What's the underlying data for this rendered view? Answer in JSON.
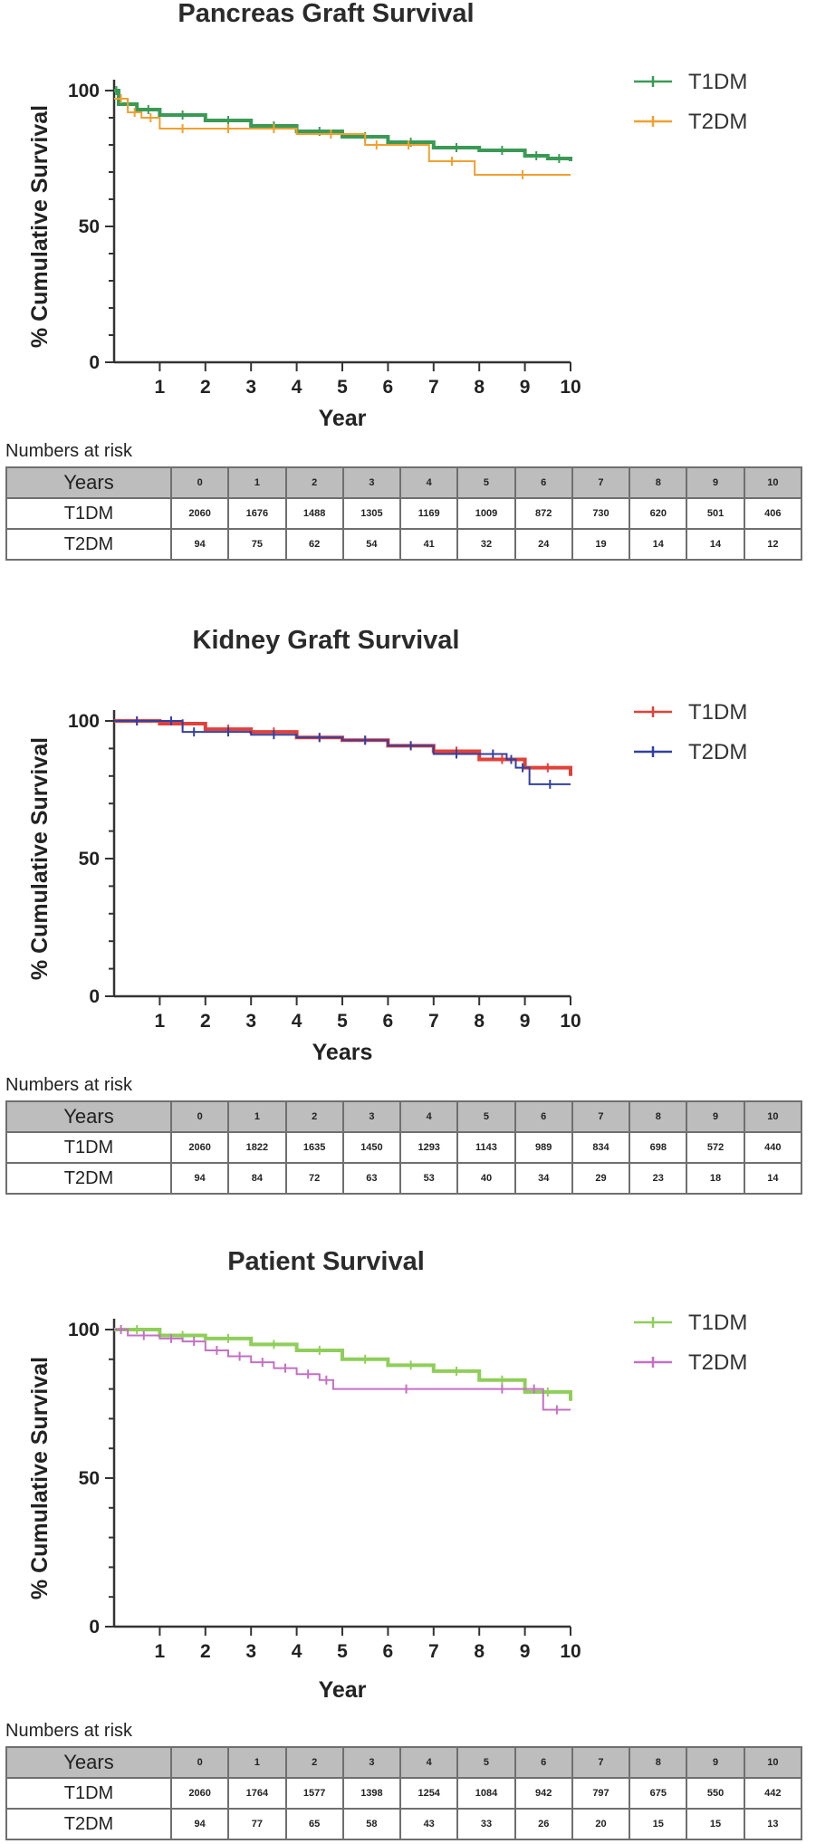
{
  "numbers_at_risk_label": "Numbers at risk",
  "chart_data": [
    {
      "type": "line",
      "title": "Pancreas Graft Survival",
      "xlabel": "Year",
      "ylabel": "% Cumulative Survival",
      "xlim": [
        0,
        10
      ],
      "ylim": [
        0,
        100
      ],
      "xticks": [
        1,
        2,
        3,
        4,
        5,
        6,
        7,
        8,
        9,
        10
      ],
      "yticks": [
        0,
        50,
        100
      ],
      "legend_position": "top-right",
      "series": [
        {
          "name": "T1DM",
          "color": "#3a9a55",
          "x": [
            0,
            0.1,
            0.5,
            1,
            2,
            3,
            4,
            5,
            6,
            7,
            8,
            9,
            9.5,
            10
          ],
          "y": [
            100,
            95,
            93,
            91,
            89,
            87,
            85,
            83,
            81,
            79,
            78,
            76,
            75,
            74
          ]
        },
        {
          "name": "T2DM",
          "color": "#f0a030",
          "x": [
            0,
            0.3,
            0.6,
            1,
            2,
            3,
            4,
            5.5,
            6,
            6.9,
            7.9,
            10
          ],
          "y": [
            97,
            92,
            90,
            86,
            86,
            86,
            84,
            80,
            80,
            74,
            69,
            69
          ]
        }
      ],
      "risk_table": {
        "header": "Years",
        "columns": [
          "0",
          "1",
          "2",
          "3",
          "4",
          "5",
          "6",
          "7",
          "8",
          "9",
          "10"
        ],
        "rows": [
          {
            "label": "T1DM",
            "values": [
              "2060",
              "1676",
              "1488",
              "1305",
              "1169",
              "1009",
              "872",
              "730",
              "620",
              "501",
              "406"
            ]
          },
          {
            "label": "T2DM",
            "values": [
              "94",
              "75",
              "62",
              "54",
              "41",
              "32",
              "24",
              "19",
              "14",
              "14",
              "12"
            ]
          }
        ]
      }
    },
    {
      "type": "line",
      "title": "Kidney Graft Survival",
      "xlabel": "Years",
      "ylabel": "% Cumulative Survival",
      "xlim": [
        0,
        10
      ],
      "ylim": [
        0,
        100
      ],
      "xticks": [
        1,
        2,
        3,
        4,
        5,
        6,
        7,
        8,
        9,
        10
      ],
      "yticks": [
        0,
        50,
        100
      ],
      "legend_position": "top-right",
      "series": [
        {
          "name": "T1DM",
          "color": "#e0413a",
          "x": [
            0,
            1,
            2,
            3,
            4,
            5,
            6,
            7,
            8,
            9,
            10
          ],
          "y": [
            100,
            99,
            97,
            96,
            94,
            93,
            91,
            89,
            86,
            83,
            80
          ]
        },
        {
          "name": "T2DM",
          "color": "#3340a0",
          "x": [
            0,
            1,
            1.5,
            2,
            3,
            4,
            5,
            6,
            7,
            8,
            8.6,
            8.8,
            9.1,
            10
          ],
          "y": [
            100,
            100,
            96,
            96,
            95,
            94,
            93,
            91,
            88,
            88,
            86,
            83,
            77,
            77
          ]
        }
      ],
      "risk_table": {
        "header": "Years",
        "columns": [
          "0",
          "1",
          "2",
          "3",
          "4",
          "5",
          "6",
          "7",
          "8",
          "9",
          "10"
        ],
        "rows": [
          {
            "label": "T1DM",
            "values": [
              "2060",
              "1822",
              "1635",
              "1450",
              "1293",
              "1143",
              "989",
              "834",
              "698",
              "572",
              "440"
            ]
          },
          {
            "label": "T2DM",
            "values": [
              "94",
              "84",
              "72",
              "63",
              "53",
              "40",
              "34",
              "29",
              "23",
              "18",
              "14"
            ]
          }
        ]
      }
    },
    {
      "type": "line",
      "title": "Patient Survival",
      "xlabel": "Year",
      "ylabel": "% Cumulative Survival",
      "xlim": [
        0,
        10
      ],
      "ylim": [
        0,
        100
      ],
      "xticks": [
        1,
        2,
        3,
        4,
        5,
        6,
        7,
        8,
        9,
        10
      ],
      "yticks": [
        0,
        50,
        100
      ],
      "legend_position": "top-right",
      "series": [
        {
          "name": "T1DM",
          "color": "#8fce5a",
          "x": [
            0,
            1,
            2,
            3,
            4,
            5,
            6,
            7,
            8,
            9,
            10
          ],
          "y": [
            100,
            98,
            97,
            95,
            93,
            90,
            88,
            86,
            83,
            79,
            76
          ]
        },
        {
          "name": "T2DM",
          "color": "#c470c4",
          "x": [
            0,
            0.3,
            1,
            1.5,
            2,
            2.5,
            3,
            3.5,
            4,
            4.5,
            4.8,
            8,
            9,
            9.4,
            10
          ],
          "y": [
            100,
            98,
            97,
            96,
            93,
            91,
            89,
            87,
            85,
            83,
            80,
            80,
            80,
            73,
            73
          ]
        }
      ],
      "risk_table": {
        "header": "Years",
        "columns": [
          "0",
          "1",
          "2",
          "3",
          "4",
          "5",
          "6",
          "7",
          "8",
          "9",
          "10"
        ],
        "rows": [
          {
            "label": "T1DM",
            "values": [
              "2060",
              "1764",
              "1577",
              "1398",
              "1254",
              "1084",
              "942",
              "797",
              "675",
              "550",
              "442"
            ]
          },
          {
            "label": "T2DM",
            "values": [
              "94",
              "77",
              "65",
              "58",
              "43",
              "33",
              "26",
              "20",
              "15",
              "15",
              "13"
            ]
          }
        ]
      }
    }
  ]
}
